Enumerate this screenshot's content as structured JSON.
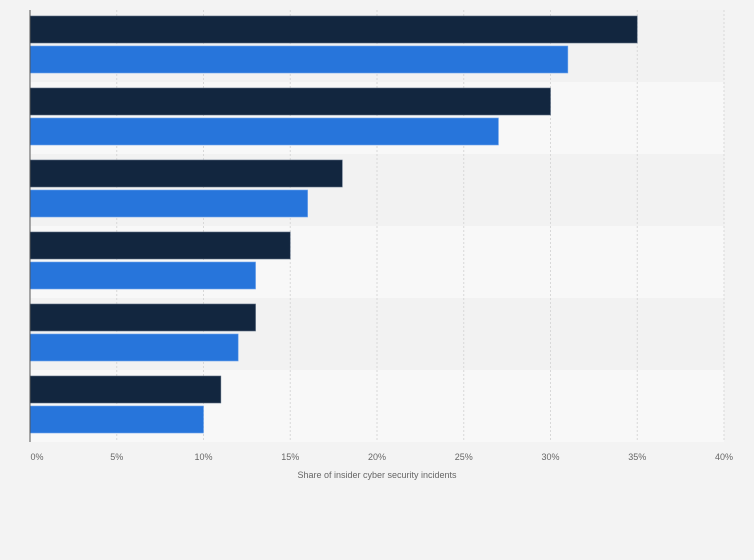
{
  "chart_data": {
    "type": "bar",
    "orientation": "horizontal",
    "title": "",
    "xlabel": "Share of insider cyber security incidents",
    "ylabel": "",
    "xlim": [
      0,
      40
    ],
    "x_ticks": [
      0,
      5,
      10,
      15,
      20,
      25,
      30,
      35,
      40
    ],
    "x_tick_labels": [
      "0%",
      "5%",
      "10%",
      "15%",
      "20%",
      "25%",
      "30%",
      "35%",
      "40%"
    ],
    "grid": true,
    "categories": [
      "",
      "",
      "",
      "",
      "",
      ""
    ],
    "series": [
      {
        "name": "",
        "color": "#12263f",
        "values": [
          35,
          30,
          18,
          15,
          13,
          11
        ]
      },
      {
        "name": "",
        "color": "#2775db",
        "values": [
          31,
          27,
          16,
          13,
          12,
          10
        ]
      }
    ]
  },
  "colors": {
    "band_a": "#f2f2f2",
    "band_b": "#f8f8f8",
    "grid": "#d8d8d8",
    "axis": "#555555"
  }
}
